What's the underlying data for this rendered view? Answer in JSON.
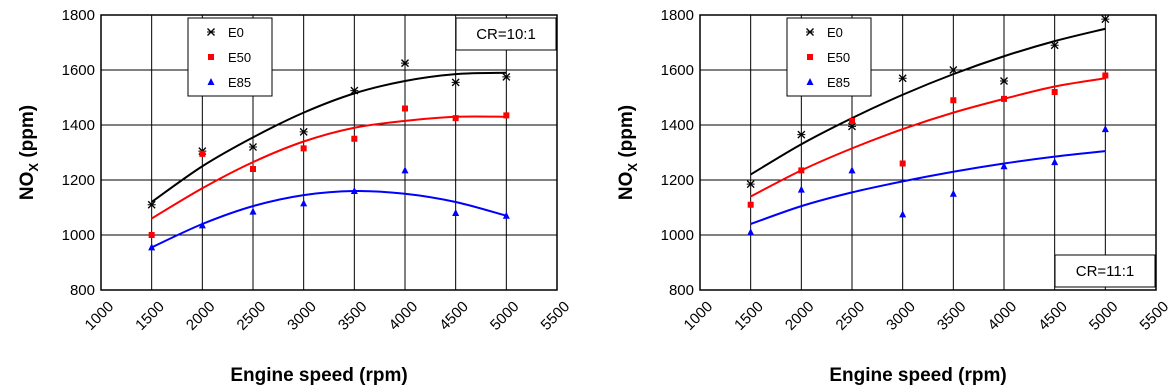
{
  "chart_data": [
    {
      "type": "scatter",
      "xlabel": "Engine speed (rpm)",
      "ylabel_main": "NO",
      "ylabel_sub": "X",
      "ylabel_unit": " (ppm)",
      "xlim": [
        1000,
        5500
      ],
      "ylim": [
        800,
        1800
      ],
      "xticks": [
        "1000",
        "1500",
        "2000",
        "2500",
        "3000",
        "3500",
        "4000",
        "4500",
        "5000",
        "5500"
      ],
      "yticks": [
        "800",
        "1000",
        "1200",
        "1400",
        "1600",
        "1800"
      ],
      "grid": true,
      "legend_position": "top-left",
      "annotation": "CR=10:1",
      "annotation_position": "top-right",
      "series": [
        {
          "name": "E0",
          "marker": "asterisk",
          "color": "#000000",
          "x": [
            1500,
            2000,
            2500,
            3000,
            3500,
            4000,
            4500,
            5000
          ],
          "y": [
            1110,
            1305,
            1320,
            1375,
            1525,
            1625,
            1555,
            1575
          ],
          "trend_x": [
            1500,
            2000,
            2500,
            3000,
            3500,
            4000,
            4500,
            5000
          ],
          "trend_y": [
            1120,
            1250,
            1355,
            1445,
            1515,
            1560,
            1585,
            1590
          ]
        },
        {
          "name": "E50",
          "marker": "square",
          "color": "#ff0000",
          "x": [
            1500,
            2000,
            2500,
            3000,
            3500,
            4000,
            4500,
            5000
          ],
          "y": [
            1000,
            1295,
            1240,
            1315,
            1350,
            1460,
            1425,
            1435
          ],
          "trend_x": [
            1500,
            2000,
            2500,
            3000,
            3500,
            4000,
            4500,
            5000
          ],
          "trend_y": [
            1060,
            1170,
            1265,
            1340,
            1390,
            1415,
            1430,
            1430
          ]
        },
        {
          "name": "E85",
          "marker": "triangle",
          "color": "#0000ff",
          "x": [
            1500,
            2000,
            2500,
            3000,
            3500,
            4000,
            4500,
            5000
          ],
          "y": [
            955,
            1035,
            1085,
            1115,
            1160,
            1235,
            1080,
            1070
          ],
          "trend_x": [
            1500,
            2000,
            2500,
            3000,
            3500,
            4000,
            4500,
            5000
          ],
          "trend_y": [
            955,
            1040,
            1105,
            1145,
            1160,
            1150,
            1120,
            1070
          ]
        }
      ]
    },
    {
      "type": "scatter",
      "xlabel": "Engine speed (rpm)",
      "ylabel_main": "NO",
      "ylabel_sub": "X",
      "ylabel_unit": " (ppm)",
      "xlim": [
        1000,
        5500
      ],
      "ylim": [
        800,
        1800
      ],
      "xticks": [
        "1000",
        "1500",
        "2000",
        "2500",
        "3000",
        "3500",
        "4000",
        "4500",
        "5000",
        "5500"
      ],
      "yticks": [
        "800",
        "1000",
        "1200",
        "1400",
        "1600",
        "1800"
      ],
      "grid": true,
      "legend_position": "top-left",
      "annotation": "CR=11:1",
      "annotation_position": "bottom-right",
      "series": [
        {
          "name": "E0",
          "marker": "asterisk",
          "color": "#000000",
          "x": [
            1500,
            2000,
            2500,
            3000,
            3500,
            4000,
            4500,
            5000
          ],
          "y": [
            1185,
            1365,
            1395,
            1570,
            1600,
            1560,
            1690,
            1785
          ],
          "trend_x": [
            1500,
            2000,
            2500,
            3000,
            3500,
            4000,
            4500,
            5000
          ],
          "trend_y": [
            1220,
            1330,
            1425,
            1510,
            1585,
            1650,
            1705,
            1750
          ]
        },
        {
          "name": "E50",
          "marker": "square",
          "color": "#ff0000",
          "x": [
            1500,
            2000,
            2500,
            3000,
            3500,
            4000,
            4500,
            5000
          ],
          "y": [
            1110,
            1235,
            1415,
            1260,
            1490,
            1495,
            1520,
            1580
          ],
          "trend_x": [
            1500,
            2000,
            2500,
            3000,
            3500,
            4000,
            4500,
            5000
          ],
          "trend_y": [
            1140,
            1235,
            1315,
            1385,
            1445,
            1495,
            1540,
            1570
          ]
        },
        {
          "name": "E85",
          "marker": "triangle",
          "color": "#0000ff",
          "x": [
            1500,
            2000,
            2500,
            3000,
            3500,
            4000,
            4500,
            5000
          ],
          "y": [
            1010,
            1165,
            1235,
            1075,
            1150,
            1250,
            1265,
            1385
          ],
          "trend_x": [
            1500,
            2000,
            2500,
            3000,
            3500,
            4000,
            4500,
            5000
          ],
          "trend_y": [
            1040,
            1105,
            1155,
            1195,
            1230,
            1260,
            1285,
            1305
          ]
        }
      ]
    }
  ]
}
